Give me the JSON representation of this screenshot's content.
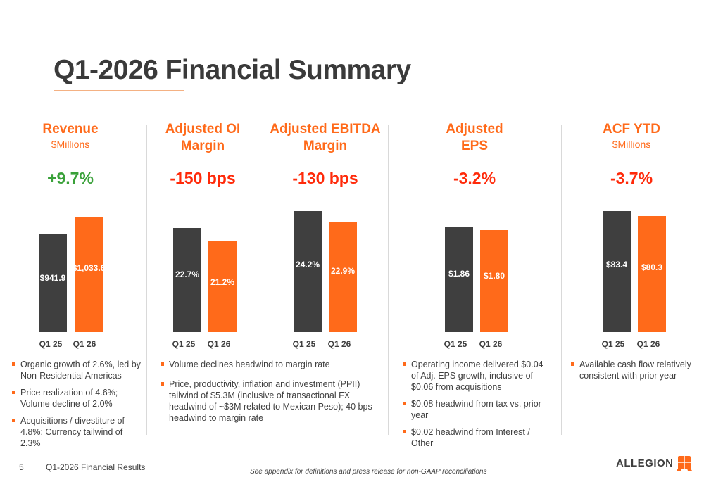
{
  "title": "Q1-2026 Financial Summary",
  "colors": {
    "accent": "#ff6a1a",
    "prior": "#3f3f3f",
    "positive": "#3aa13a",
    "negative": "#ff2a0a"
  },
  "categories": [
    "Q1 25",
    "Q1 26"
  ],
  "charts": [
    {
      "id": "revenue",
      "header": "Revenue",
      "sub": "$Millions",
      "change": "+9.7%",
      "values": [
        941.9,
        1033.6
      ],
      "labels": [
        "$941.9",
        "$1,033.6"
      ]
    },
    {
      "id": "adj-oi-margin",
      "header": "Adjusted OI Margin",
      "sub": "",
      "change": "-150 bps",
      "values": [
        22.7,
        21.2
      ],
      "labels": [
        "22.7%",
        "21.2%"
      ]
    },
    {
      "id": "adj-ebitda-margin",
      "header": "Adjusted EBITDA Margin",
      "sub": "",
      "change": "-130 bps",
      "values": [
        24.2,
        22.9
      ],
      "labels": [
        "24.2%",
        "22.9%"
      ]
    },
    {
      "id": "adj-eps",
      "header": "Adjusted EPS",
      "sub": "",
      "change": "-3.2%",
      "values": [
        1.86,
        1.8
      ],
      "labels": [
        "$1.86",
        "$1.80"
      ]
    },
    {
      "id": "acf-ytd",
      "header": "ACF YTD",
      "sub": "$Millions",
      "change": "-3.7%",
      "values": [
        83.4,
        80.3
      ],
      "labels": [
        "$83.4",
        "$80.3"
      ]
    }
  ],
  "bullets": {
    "revenue": [
      "Organic growth of 2.6%, led by Non-Residential Americas",
      "Price realization of 4.6%; Volume decline of 2.0%",
      "Acquisitions / divestiture of 4.8%; Currency tailwind of 2.3%"
    ],
    "margin": [
      "Volume declines headwind to margin rate",
      "Price, productivity, inflation and investment (PPII) tailwind of $5.3M (inclusive of transactional FX headwind of ~$3M related to Mexican Peso); 40 bps headwind to margin rate"
    ],
    "eps": [
      "Operating income delivered $0.04 of Adj. EPS growth, inclusive of $0.06 from acquisitions",
      "$0.08 headwind from tax vs. prior year",
      "$0.02 headwind from Interest / Other"
    ],
    "acf": [
      "Available cash flow relatively consistent with prior year"
    ]
  },
  "footer": {
    "page": "5",
    "name": "Q1-2026 Financial Results",
    "note": "See appendix for definitions and press release for non-GAAP reconciliations",
    "logo": "ALLEGION"
  }
}
